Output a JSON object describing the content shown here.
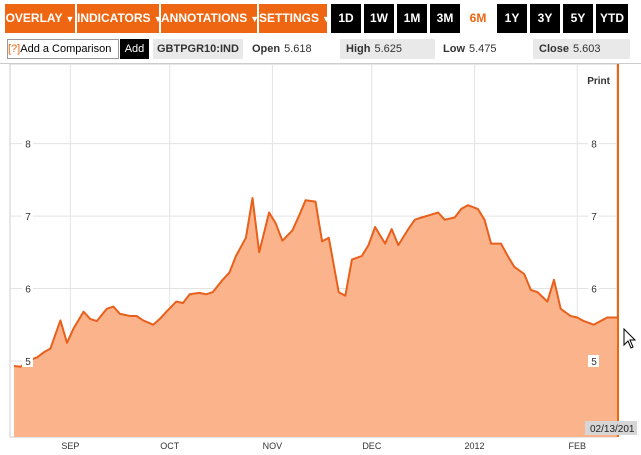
{
  "toolbar": {
    "menus": [
      {
        "label": "OVERLAY",
        "arrow": "▼"
      },
      {
        "label": "INDICATORS",
        "arrow": "▼"
      },
      {
        "label": "ANNOTATIONS",
        "arrow": "▼"
      },
      {
        "label": "SETTINGS",
        "arrow": "▼"
      }
    ],
    "ranges": [
      "1D",
      "1W",
      "1M",
      "3M",
      "6M",
      "1Y",
      "3Y",
      "5Y",
      "YTD"
    ],
    "active_range": "6M"
  },
  "infobar": {
    "compare_prefix": "[?]",
    "compare_label": "Add a Comparison",
    "add_label": "Add",
    "ticker": "GBTPGR10:IND",
    "open_label": "Open",
    "open_value": "5.618",
    "high_label": "High",
    "high_value": "5.625",
    "low_label": "Low",
    "low_value": "5.475",
    "close_label": "Close",
    "close_value": "5.603"
  },
  "print_label": "Print",
  "date_label": "02/13/201",
  "colors": {
    "accent": "#ee6611",
    "fill": "#fbb38b",
    "line": "#e8601c"
  },
  "chart_data": {
    "type": "area",
    "ylim": [
      3.95,
      9.1
    ],
    "yticks": [
      "5",
      "6",
      "7",
      "8"
    ],
    "month_labels": [
      "SEP",
      "OCT",
      "NOV",
      "DEC",
      "2012",
      "FEB"
    ],
    "month_dates": [
      "2011-09-01",
      "2011-10-01",
      "2011-11-01",
      "2011-12-01",
      "2012-01-01",
      "2012-02-01"
    ],
    "x": [
      "2011-08-15",
      "2011-08-17",
      "2011-08-19",
      "2011-08-22",
      "2011-08-24",
      "2011-08-26",
      "2011-08-29",
      "2011-08-31",
      "2011-09-02",
      "2011-09-05",
      "2011-09-07",
      "2011-09-09",
      "2011-09-12",
      "2011-09-14",
      "2011-09-16",
      "2011-09-19",
      "2011-09-21",
      "2011-09-23",
      "2011-09-26",
      "2011-09-28",
      "2011-09-30",
      "2011-10-03",
      "2011-10-05",
      "2011-10-07",
      "2011-10-10",
      "2011-10-12",
      "2011-10-14",
      "2011-10-17",
      "2011-10-19",
      "2011-10-21",
      "2011-10-24",
      "2011-10-26",
      "2011-10-28",
      "2011-10-31",
      "2011-11-02",
      "2011-11-04",
      "2011-11-07",
      "2011-11-09",
      "2011-11-11",
      "2011-11-14",
      "2011-11-16",
      "2011-11-18",
      "2011-11-21",
      "2011-11-23",
      "2011-11-25",
      "2011-11-28",
      "2011-11-30",
      "2011-12-02",
      "2011-12-05",
      "2011-12-07",
      "2011-12-09",
      "2011-12-12",
      "2011-12-14",
      "2011-12-16",
      "2011-12-19",
      "2011-12-21",
      "2011-12-23",
      "2011-12-26",
      "2011-12-28",
      "2011-12-30",
      "2012-01-02",
      "2012-01-04",
      "2012-01-06",
      "2012-01-09",
      "2012-01-11",
      "2012-01-13",
      "2012-01-16",
      "2012-01-18",
      "2012-01-20",
      "2012-01-23",
      "2012-01-25",
      "2012-01-27",
      "2012-01-30",
      "2012-02-01",
      "2012-02-03",
      "2012-02-06",
      "2012-02-08",
      "2012-02-10",
      "2012-02-13"
    ],
    "values": [
      4.93,
      4.92,
      5.0,
      5.05,
      5.12,
      5.17,
      5.56,
      5.25,
      5.45,
      5.68,
      5.58,
      5.55,
      5.72,
      5.75,
      5.65,
      5.62,
      5.62,
      5.56,
      5.5,
      5.58,
      5.68,
      5.82,
      5.8,
      5.92,
      5.94,
      5.92,
      5.95,
      6.12,
      6.22,
      6.45,
      6.7,
      7.25,
      6.5,
      7.05,
      6.9,
      6.66,
      6.8,
      7.0,
      7.22,
      7.2,
      6.65,
      6.7,
      5.95,
      5.9,
      6.4,
      6.45,
      6.6,
      6.85,
      6.62,
      6.82,
      6.6,
      6.82,
      6.95,
      6.98,
      7.02,
      7.05,
      6.95,
      6.98,
      7.1,
      7.15,
      7.1,
      6.95,
      6.62,
      6.62,
      6.45,
      6.3,
      6.2,
      5.98,
      5.95,
      5.82,
      6.12,
      5.72,
      5.62,
      5.6,
      5.55,
      5.5,
      5.55,
      5.6,
      5.6
    ]
  }
}
